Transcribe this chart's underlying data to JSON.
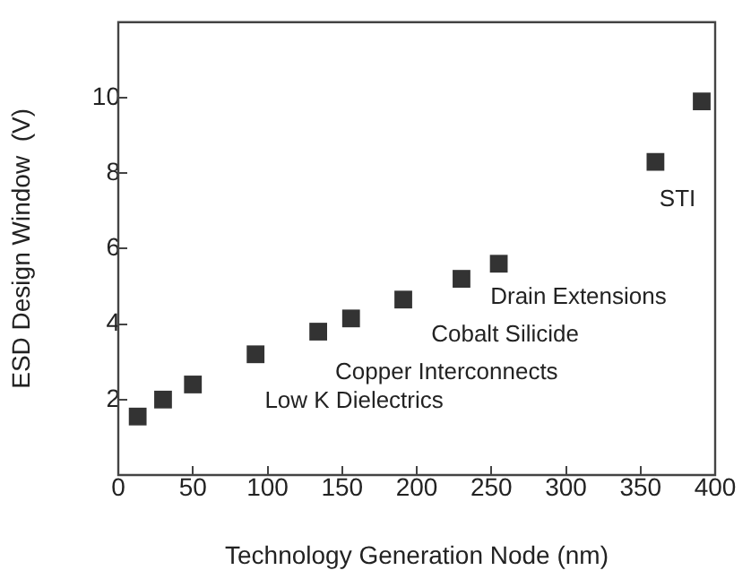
{
  "chart_data": {
    "type": "scatter",
    "xlabel": "Technology Generation Node (nm)",
    "ylabel": "ESD Design Window  (V)",
    "x": [
      13,
      30,
      50,
      92,
      134,
      156,
      191,
      230,
      255,
      360,
      391
    ],
    "values": [
      1.55,
      2.0,
      2.4,
      3.2,
      3.8,
      4.15,
      4.65,
      5.2,
      5.6,
      8.3,
      9.9
    ],
    "color": "#333333",
    "marker": "square",
    "grid": false,
    "legend": false,
    "xlim": [
      0,
      400
    ],
    "xticks": [
      0,
      50,
      100,
      150,
      200,
      250,
      300,
      350,
      400
    ],
    "ylim": [
      0,
      12
    ],
    "yticks": [
      2,
      4,
      6,
      8,
      10
    ],
    "annotations": [
      "Low K Dielectrics",
      "Copper Interconnects",
      "Cobalt Silicide",
      "Drain Extensions",
      "STI"
    ]
  }
}
